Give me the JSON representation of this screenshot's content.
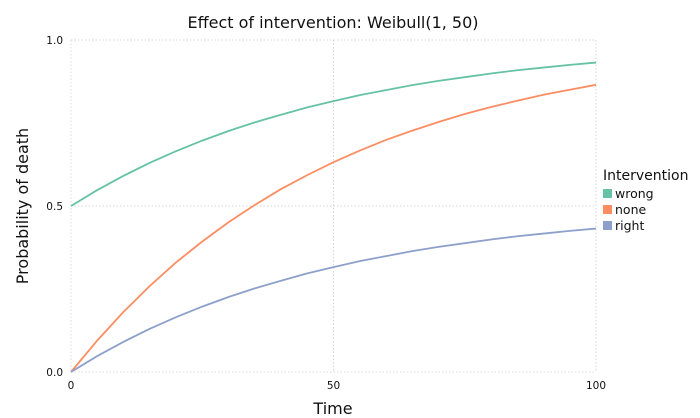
{
  "chart_data": {
    "type": "line",
    "title": "Effect of intervention: Weibull(1, 50)",
    "xlabel": "Time",
    "ylabel": "Probability of death",
    "xlim": [
      0,
      100
    ],
    "ylim": [
      0,
      1
    ],
    "x_ticks": [
      0,
      50,
      100
    ],
    "x_tick_labels": [
      "0",
      "50",
      "100"
    ],
    "y_ticks": [
      0,
      0.5,
      1
    ],
    "y_tick_labels": [
      "0.0",
      "0.5",
      "1.0"
    ],
    "grid": true,
    "legend": {
      "title": "Intervention",
      "placement": "right"
    },
    "x": [
      0,
      5,
      10,
      15,
      20,
      25,
      30,
      35,
      40,
      45,
      50,
      55,
      60,
      65,
      70,
      75,
      80,
      85,
      90,
      95,
      100
    ],
    "series": [
      {
        "name": "wrong",
        "color": "#66c2a5",
        "values": [
          0.5,
          0.548,
          0.591,
          0.63,
          0.665,
          0.697,
          0.726,
          0.752,
          0.775,
          0.797,
          0.816,
          0.834,
          0.849,
          0.864,
          0.877,
          0.888,
          0.899,
          0.909,
          0.917,
          0.925,
          0.932
        ]
      },
      {
        "name": "none",
        "color": "#fc8d62",
        "values": [
          0.0,
          0.095,
          0.181,
          0.259,
          0.33,
          0.393,
          0.451,
          0.503,
          0.551,
          0.593,
          0.632,
          0.667,
          0.699,
          0.727,
          0.753,
          0.777,
          0.798,
          0.817,
          0.835,
          0.85,
          0.865
        ]
      },
      {
        "name": "right",
        "color": "#8da0cb",
        "values": [
          0.0,
          0.048,
          0.091,
          0.13,
          0.165,
          0.197,
          0.226,
          0.252,
          0.275,
          0.297,
          0.316,
          0.334,
          0.349,
          0.364,
          0.377,
          0.388,
          0.399,
          0.409,
          0.417,
          0.425,
          0.432
        ]
      }
    ]
  }
}
